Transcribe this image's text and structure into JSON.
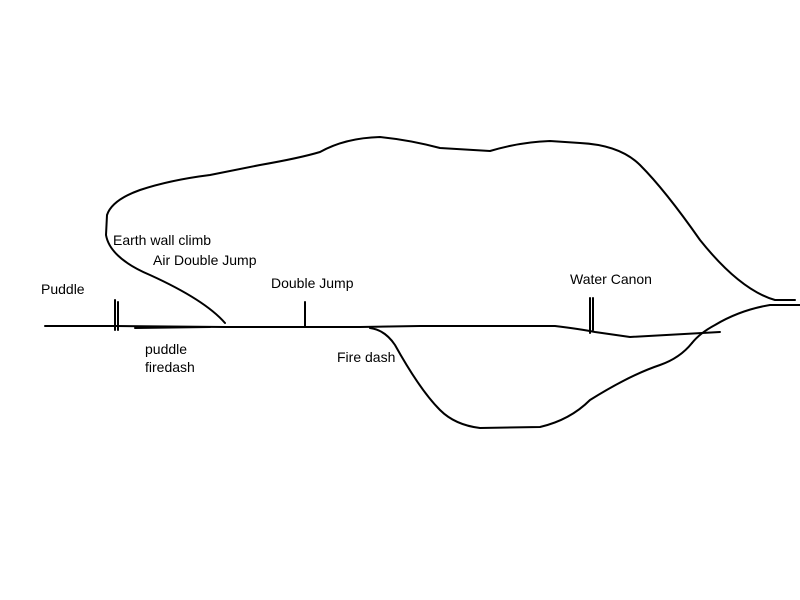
{
  "colors": {
    "background": "#ffffff",
    "ink": "#000000"
  },
  "labels": {
    "puddle": "Puddle",
    "earth_wall_climb": "Earth wall climb",
    "air_double_jump": "Air Double Jump",
    "double_jump": "Double Jump",
    "water_canon": "Water Canon",
    "puddle_firedash_line1": "puddle",
    "puddle_firedash_line2": "firedash",
    "fire_dash": "Fire dash"
  }
}
